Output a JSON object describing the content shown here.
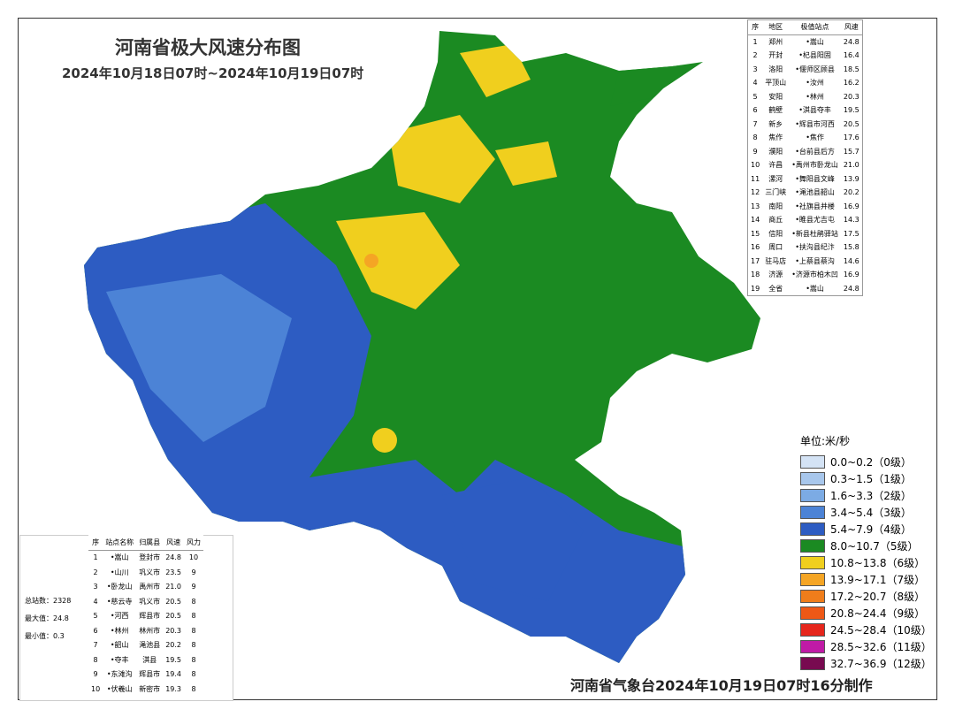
{
  "header": {
    "title": "河南省极大风速分布图",
    "subtitle": "2024年10月18日07时~2024年10月19日07时"
  },
  "region_table": {
    "columns": [
      "序",
      "地区",
      "极值站点",
      "风速"
    ],
    "rows": [
      [
        "1",
        "郑州",
        "•嵩山",
        "24.8"
      ],
      [
        "2",
        "开封",
        "•杞县阳固",
        "16.4"
      ],
      [
        "3",
        "洛阳",
        "•偃师区顾县",
        "18.5"
      ],
      [
        "4",
        "平顶山",
        "•汝州",
        "16.2"
      ],
      [
        "5",
        "安阳",
        "•林州",
        "20.3"
      ],
      [
        "6",
        "鹤壁",
        "•淇县夺丰",
        "19.5"
      ],
      [
        "7",
        "新乡",
        "•辉县市河西",
        "20.5"
      ],
      [
        "8",
        "焦作",
        "•焦作",
        "17.6"
      ],
      [
        "9",
        "濮阳",
        "•台前县后方",
        "15.7"
      ],
      [
        "10",
        "许昌",
        "•禹州市卧龙山",
        "21.0"
      ],
      [
        "11",
        "漯河",
        "•舞阳县文峰",
        "13.9"
      ],
      [
        "12",
        "三门峡",
        "•渑池县韶山",
        "20.2"
      ],
      [
        "13",
        "南阳",
        "•社旗县并楼",
        "16.9"
      ],
      [
        "14",
        "商丘",
        "•睢县尤吉屯",
        "14.3"
      ],
      [
        "15",
        "信阳",
        "•新县杜鹃驿站",
        "17.5"
      ],
      [
        "16",
        "周口",
        "•扶沟县纪汴",
        "15.8"
      ],
      [
        "17",
        "驻马店",
        "•上蔡县蔡沟",
        "14.6"
      ],
      [
        "18",
        "济源",
        "•济源市柏木凹",
        "16.9"
      ],
      [
        "19",
        "全省",
        "•嵩山",
        "24.8"
      ]
    ]
  },
  "legend": {
    "unit": "单位:米/秒",
    "items": [
      {
        "label": "0.0~0.2（0级）",
        "color": "#d4e3f5"
      },
      {
        "label": "0.3~1.5（1级）",
        "color": "#a8c7ec"
      },
      {
        "label": "1.6~3.3（2级）",
        "color": "#7cabe4"
      },
      {
        "label": "3.4~5.4（3级）",
        "color": "#4c83d6"
      },
      {
        "label": "5.4~7.9（4级）",
        "color": "#2d5cc2"
      },
      {
        "label": "8.0~10.7（5级）",
        "color": "#1b8a22"
      },
      {
        "label": "10.8~13.8（6级）",
        "color": "#f0cf1e"
      },
      {
        "label": "13.9~17.1（7级）",
        "color": "#f5a524"
      },
      {
        "label": "17.2~20.7（8级）",
        "color": "#ef7d1b"
      },
      {
        "label": "20.8~24.4（9级）",
        "color": "#ee5816"
      },
      {
        "label": "24.5~28.4（10级）",
        "color": "#e6261c"
      },
      {
        "label": "28.5~32.6（11级）",
        "color": "#c01aa6"
      },
      {
        "label": "32.7~36.9（12级）",
        "color": "#780a50"
      }
    ]
  },
  "station_table": {
    "columns": [
      "序",
      "站点名称",
      "归属县",
      "风速",
      "风力"
    ],
    "rows": [
      [
        "1",
        "•嵩山",
        "登封市",
        "24.8",
        "10"
      ],
      [
        "2",
        "•山川",
        "巩义市",
        "23.5",
        "9"
      ],
      [
        "3",
        "•卧龙山",
        "禹州市",
        "21.0",
        "9"
      ],
      [
        "4",
        "•慈云寺",
        "巩义市",
        "20.5",
        "8"
      ],
      [
        "5",
        "•河西",
        "辉县市",
        "20.5",
        "8"
      ],
      [
        "6",
        "•林州",
        "林州市",
        "20.3",
        "8"
      ],
      [
        "7",
        "•韶山",
        "渑池县",
        "20.2",
        "8"
      ],
      [
        "8",
        "•夺丰",
        "淇县",
        "19.5",
        "8"
      ],
      [
        "9",
        "•东滩沟",
        "辉县市",
        "19.4",
        "8"
      ],
      [
        "10",
        "•伏羲山",
        "新密市",
        "19.3",
        "8"
      ]
    ]
  },
  "stats": [
    "总站数：2328",
    "最大值：24.8",
    "最小值：0.3"
  ],
  "footer": "河南省气象台2024年10月19日07时16分制作"
}
